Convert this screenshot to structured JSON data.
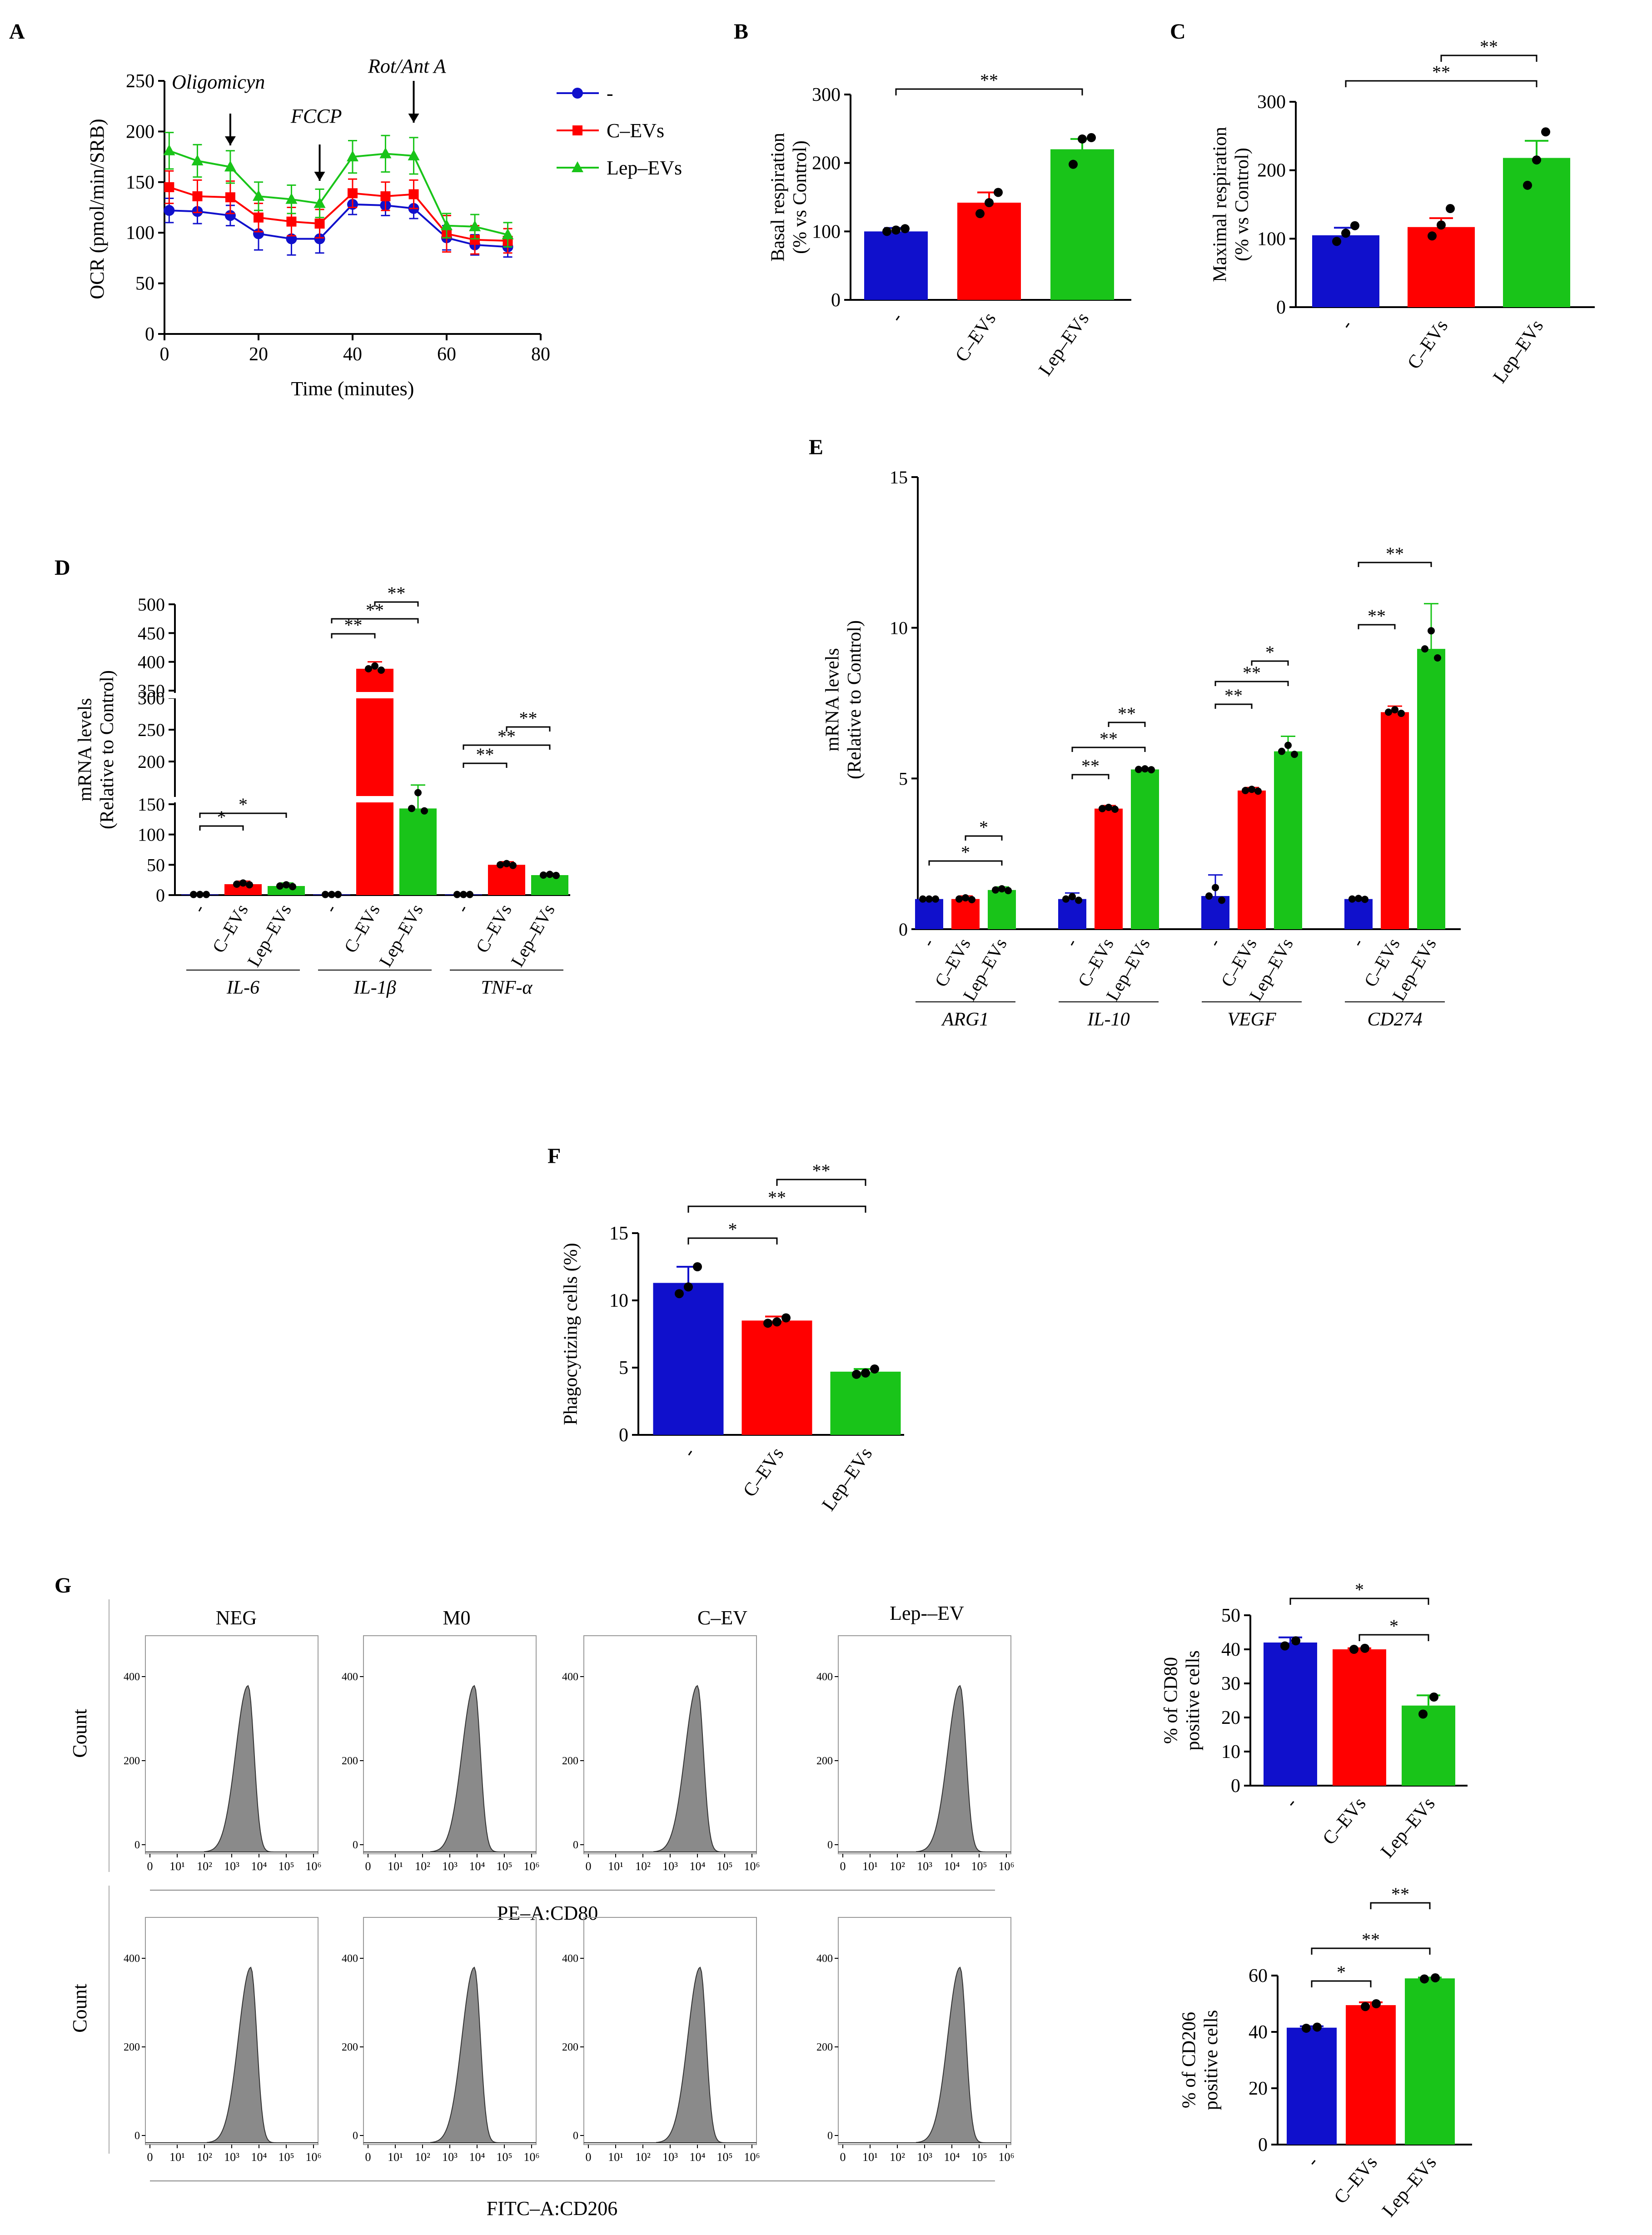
{
  "colors": {
    "blue": "#1010cc",
    "red": "#ff0000",
    "green": "#19c419",
    "axis": "#000000",
    "hist": "#8a8a8a"
  },
  "panel_labels": {
    "A": "A",
    "B": "B",
    "C": "C",
    "D": "D",
    "E": "E",
    "F": "F",
    "G": "G"
  },
  "groups": [
    "-",
    "C–EVs",
    "Lep–EVs"
  ],
  "chart_data": [
    {
      "id": "A",
      "type": "line",
      "xlabel": "Time (minutes)",
      "ylabel": "OCR (pmol/min/SRB)",
      "xlim": [
        0,
        80
      ],
      "ylim": [
        0,
        250
      ],
      "xticks": [
        0,
        20,
        40,
        60,
        80
      ],
      "yticks": [
        0,
        50,
        100,
        150,
        200,
        250
      ],
      "x": [
        1,
        7,
        14,
        20,
        27,
        33,
        40,
        47,
        53,
        60,
        66,
        73
      ],
      "series": [
        {
          "name": "-",
          "color": "#1010cc",
          "values": [
            122,
            121,
            117,
            99,
            94,
            94,
            128,
            127,
            124,
            95,
            88,
            86
          ],
          "errors": [
            12,
            12,
            10,
            16,
            16,
            14,
            10,
            10,
            10,
            12,
            10,
            10
          ]
        },
        {
          "name": "C–EVs",
          "color": "#ff0000",
          "values": [
            145,
            136,
            135,
            115,
            111,
            109,
            139,
            136,
            138,
            99,
            93,
            92
          ],
          "errors": [
            16,
            16,
            16,
            14,
            14,
            14,
            14,
            14,
            14,
            18,
            14,
            12
          ]
        },
        {
          "name": "Lep–EVs",
          "color": "#19c419",
          "values": [
            181,
            171,
            165,
            136,
            133,
            129,
            175,
            178,
            176,
            107,
            106,
            98
          ],
          "errors": [
            18,
            16,
            16,
            14,
            14,
            14,
            16,
            18,
            18,
            12,
            12,
            12
          ]
        }
      ],
      "annotations": [
        {
          "text": "Oligomicyn",
          "x": 14
        },
        {
          "text": "FCCP",
          "x": 33
        },
        {
          "text": "Rot/Ant A",
          "x": 53
        }
      ]
    },
    {
      "id": "B",
      "type": "bar",
      "ylabel": "Basal respiration\n(% vs Control)",
      "categories": [
        "-",
        "C–EVs",
        "Lep–EVs"
      ],
      "values": [
        100,
        142,
        220
      ],
      "errors": [
        5,
        15,
        15
      ],
      "points": [
        [
          100,
          102,
          104
        ],
        [
          126,
          142,
          157
        ],
        [
          198,
          235,
          237
        ]
      ],
      "ylim": [
        0,
        300
      ],
      "yticks": [
        0,
        100,
        200,
        300
      ],
      "significance": [
        {
          "from": 0,
          "to": 2,
          "label": "**"
        }
      ]
    },
    {
      "id": "C",
      "type": "bar",
      "ylabel": "Maximal respiration\n(% vs Control)",
      "categories": [
        "-",
        "C–EVs",
        "Lep–EVs"
      ],
      "values": [
        105,
        117,
        218
      ],
      "errors": [
        11,
        13,
        25
      ],
      "points": [
        [
          96,
          108,
          119
        ],
        [
          104,
          120,
          144
        ],
        [
          178,
          215,
          256
        ]
      ],
      "ylim": [
        0,
        300
      ],
      "yticks": [
        0,
        100,
        200,
        300
      ],
      "significance": [
        {
          "from": 1,
          "to": 2,
          "label": "**"
        },
        {
          "from": 0,
          "to": 2,
          "label": "**"
        }
      ]
    },
    {
      "id": "D",
      "type": "bar",
      "ylabel": "mRNA levels\n(Relative to Control)",
      "gene_groups": [
        "IL-6",
        "IL-1β",
        "TNF-α"
      ],
      "categories": [
        "-",
        "C–EVs",
        "Lep–EVs"
      ],
      "values": [
        [
          1,
          18,
          15
        ],
        [
          1,
          388,
          143
        ],
        [
          1,
          50,
          33
        ]
      ],
      "errors": [
        [
          0,
          5,
          5
        ],
        [
          0,
          12,
          20
        ],
        [
          0,
          5,
          3
        ]
      ],
      "broken_axis": {
        "segments": [
          [
            0,
            160
          ],
          [
            160,
            320
          ],
          [
            330,
            500
          ]
        ],
        "tick_labels": [
          "0",
          "50",
          "100",
          "150",
          "200",
          "250",
          "300",
          "350",
          "400",
          "450",
          "500"
        ]
      },
      "significance": [
        {
          "group": 0,
          "from": 0,
          "to": 1,
          "label": "*"
        },
        {
          "group": 0,
          "from": 0,
          "to": 2,
          "label": "*"
        },
        {
          "group": 1,
          "from": 0,
          "to": 1,
          "label": "**"
        },
        {
          "group": 1,
          "from": 0,
          "to": 2,
          "label": "**"
        },
        {
          "group": 1,
          "from": 1,
          "to": 2,
          "label": "**"
        },
        {
          "group": 2,
          "from": 0,
          "to": 1,
          "label": "**"
        },
        {
          "group": 2,
          "from": 0,
          "to": 2,
          "label": "**"
        },
        {
          "group": 2,
          "from": 1,
          "to": 2,
          "label": "**"
        }
      ]
    },
    {
      "id": "E",
      "type": "bar",
      "ylabel": "mRNA levels\n(Relative to Control)",
      "gene_groups": [
        "ARG1",
        "IL-10",
        "VEGF",
        "CD274"
      ],
      "categories": [
        "-",
        "C–EVs",
        "Lep–EVs"
      ],
      "values": [
        [
          1.0,
          1.0,
          1.3
        ],
        [
          1.0,
          4.0,
          5.3
        ],
        [
          1.1,
          4.6,
          5.9
        ],
        [
          1.0,
          7.2,
          9.3
        ]
      ],
      "errors": [
        [
          0,
          0.1,
          0.1
        ],
        [
          0.2,
          0.1,
          0.05
        ],
        [
          0.7,
          0.1,
          0.5
        ],
        [
          0.05,
          0.2,
          1.5
        ]
      ],
      "ylim": [
        0,
        15
      ],
      "yticks": [
        0,
        5,
        10,
        15
      ],
      "significance": [
        {
          "group": 0,
          "from": 0,
          "to": 2,
          "label": "*"
        },
        {
          "group": 0,
          "from": 1,
          "to": 2,
          "label": "*"
        },
        {
          "group": 1,
          "from": 0,
          "to": 1,
          "label": "**"
        },
        {
          "group": 1,
          "from": 0,
          "to": 2,
          "label": "**"
        },
        {
          "group": 1,
          "from": 1,
          "to": 2,
          "label": "**"
        },
        {
          "group": 2,
          "from": 0,
          "to": 1,
          "label": "**"
        },
        {
          "group": 2,
          "from": 0,
          "to": 2,
          "label": "**"
        },
        {
          "group": 2,
          "from": 1,
          "to": 2,
          "label": "*"
        },
        {
          "group": 3,
          "from": 0,
          "to": 1,
          "label": "**"
        },
        {
          "group": 3,
          "from": 0,
          "to": 2,
          "label": "**"
        }
      ]
    },
    {
      "id": "F",
      "type": "bar",
      "ylabel": "Phagocytizing  cells (%)",
      "categories": [
        "-",
        "C–EVs",
        "Lep–EVs"
      ],
      "values": [
        11.3,
        8.5,
        4.7
      ],
      "errors": [
        1.2,
        0.3,
        0.2
      ],
      "points": [
        [
          10.5,
          11.0,
          12.5
        ],
        [
          8.3,
          8.4,
          8.7
        ],
        [
          4.5,
          4.6,
          4.9
        ]
      ],
      "ylim": [
        0,
        15
      ],
      "yticks": [
        0,
        5,
        10,
        15
      ],
      "significance": [
        {
          "from": 0,
          "to": 1,
          "label": "*"
        },
        {
          "from": 0,
          "to": 2,
          "label": "**"
        },
        {
          "from": 1,
          "to": 2,
          "label": "**"
        }
      ]
    },
    {
      "id": "G-CD80",
      "type": "bar",
      "ylabel": "% of CD80\npositive cells",
      "categories": [
        "-",
        "C–EVs",
        "Lep–EVs"
      ],
      "values": [
        42,
        40,
        23.5
      ],
      "errors": [
        1.5,
        0.3,
        3
      ],
      "points": [
        [
          41,
          42.5
        ],
        [
          40,
          40.3
        ],
        [
          21,
          26
        ]
      ],
      "ylim": [
        0,
        50
      ],
      "yticks": [
        0,
        10,
        20,
        30,
        40,
        50
      ],
      "significance": [
        {
          "from": 0,
          "to": 2,
          "label": "*"
        },
        {
          "from": 1,
          "to": 2,
          "label": "*"
        }
      ]
    },
    {
      "id": "G-CD206",
      "type": "bar",
      "ylabel": "% of CD206\npositive cells",
      "categories": [
        "-",
        "C–EVs",
        "Lep–EVs"
      ],
      "values": [
        41.5,
        49.5,
        59
      ],
      "errors": [
        0.5,
        1,
        0.3
      ],
      "points": [
        [
          41.3,
          41.7
        ],
        [
          49,
          50
        ],
        [
          58.8,
          59.2
        ]
      ],
      "ylim": [
        0,
        60
      ],
      "yticks": [
        0,
        20,
        40,
        60
      ],
      "significance": [
        {
          "from": 0,
          "to": 1,
          "label": "*"
        },
        {
          "from": 0,
          "to": 2,
          "label": "**"
        },
        {
          "from": 1,
          "to": 2,
          "label": "**"
        }
      ]
    },
    {
      "id": "G-flow",
      "type": "histogram",
      "column_titles": [
        "NEG",
        "M0",
        "C–EV",
        "Lep-–EV"
      ],
      "rows": [
        {
          "marker": "PE–A:CD80"
        },
        {
          "marker": "FITC–A:CD206"
        }
      ],
      "ylabel": "Count",
      "yticks": [
        "0",
        "200",
        "400"
      ],
      "xticks": [
        "0",
        "10¹",
        "10²",
        "10³",
        "10⁴",
        "10⁵",
        "10⁶"
      ],
      "peaks_log10": [
        [
          3.6,
          3.9,
          4.0,
          4.3
        ],
        [
          3.7,
          3.9,
          4.1,
          4.3
        ]
      ]
    }
  ]
}
